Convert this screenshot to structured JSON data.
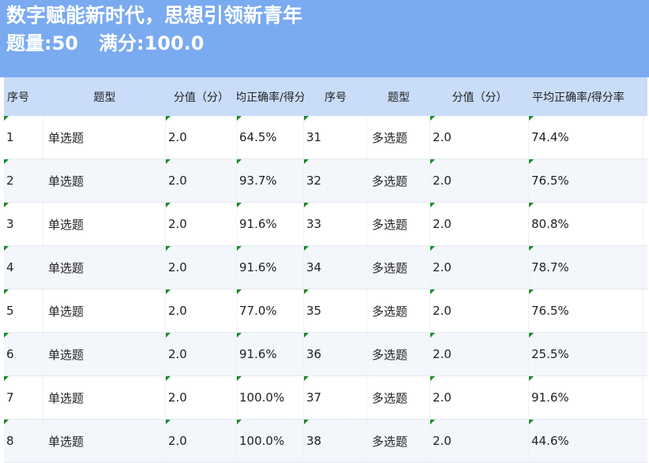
{
  "header": {
    "title": "数字赋能新时代，思想引领新青年",
    "count_label": "题量:50",
    "score_label": "满分:100.0"
  },
  "columns": [
    "序号",
    "题型",
    "分值（分）",
    "平均正确率/得分率",
    "序号",
    "题型",
    "分值（分）",
    "平均正确率/得分率"
  ],
  "rows": [
    [
      "1",
      "单选题",
      "2.0",
      "64.5%",
      "31",
      "多选题",
      "2.0",
      "74.4%"
    ],
    [
      "2",
      "单选题",
      "2.0",
      "93.7%",
      "32",
      "多选题",
      "2.0",
      "76.5%"
    ],
    [
      "3",
      "单选题",
      "2.0",
      "91.6%",
      "33",
      "多选题",
      "2.0",
      "80.8%"
    ],
    [
      "4",
      "单选题",
      "2.0",
      "91.6%",
      "34",
      "多选题",
      "2.0",
      "78.7%"
    ],
    [
      "5",
      "单选题",
      "2.0",
      "77.0%",
      "35",
      "多选题",
      "2.0",
      "76.5%"
    ],
    [
      "6",
      "单选题",
      "2.0",
      "91.6%",
      "36",
      "多选题",
      "2.0",
      "25.5%"
    ],
    [
      "7",
      "单选题",
      "2.0",
      "100.0%",
      "37",
      "多选题",
      "2.0",
      "91.6%"
    ],
    [
      "8",
      "单选题",
      "2.0",
      "100.0%",
      "38",
      "多选题",
      "2.0",
      "44.6%"
    ]
  ],
  "colors": {
    "title_bg": "#7aaaf0",
    "header_bg": "#c9dcf8",
    "flag": "#1a8a2a"
  }
}
